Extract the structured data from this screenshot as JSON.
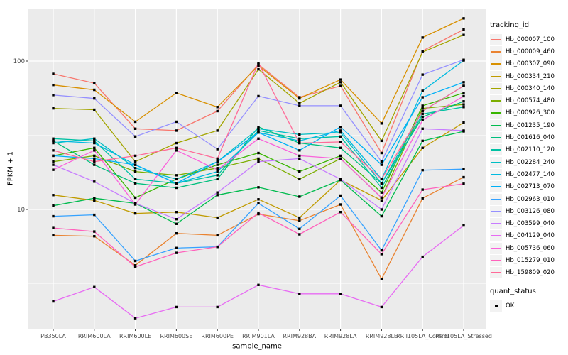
{
  "figure": {
    "colors": {
      "panel_bg": "#EBEBEB",
      "grid_major": "#FFFFFF",
      "grid_minor": "#FFFFFF",
      "tick_mark": "#333333",
      "tick_label": "#4D4D4D",
      "axis_title": "#000000",
      "point": "#000000",
      "legend_key_bg": "#F2F2F2"
    }
  },
  "chart_data": {
    "type": "line",
    "title": "",
    "xlabel": "sample_name",
    "ylabel": "FPKM + 1",
    "yscale": "log10",
    "ylim": [
      1.57,
      226
    ],
    "yticks": [
      10,
      100
    ],
    "minor_yticks": [
      3.162,
      31.62
    ],
    "grid": true,
    "legend_position": "right",
    "legend_titles": {
      "color": "tracking_id",
      "shape": "quant_status"
    },
    "quant_status": {
      "label": "OK",
      "marker": "black-square"
    },
    "marker": "black-square",
    "categories": [
      "PB350LA",
      "RRIM600LA",
      "RRIM600LE",
      "RRIM600SE",
      "RRIM600PE",
      "RRIM901LA",
      "RRIM928BA",
      "RRIM928LA",
      "RRIM928LE",
      "RRII105LA_Control",
      "RRII105LA_Stressed"
    ],
    "series": [
      {
        "name": "Hb_000007_100",
        "color": "#F8766D",
        "values": [
          82,
          71,
          35,
          34,
          46,
          95,
          57,
          68,
          24,
          117,
          163
        ]
      },
      {
        "name": "Hb_000009_460",
        "color": "#EA8331",
        "values": [
          6.7,
          6.6,
          4.2,
          6.9,
          6.7,
          9.3,
          8.4,
          10.8,
          3.4,
          11.9,
          16.5
        ]
      },
      {
        "name": "Hb_000307_090",
        "color": "#D89000",
        "values": [
          69,
          64,
          39,
          61,
          49,
          93,
          56,
          75,
          38,
          144,
          194
        ]
      },
      {
        "name": "Hb_000334_210",
        "color": "#C09B00",
        "values": [
          12.5,
          11.5,
          9.4,
          9.6,
          8.8,
          11.7,
          8.8,
          15.8,
          11.5,
          26,
          38.5
        ]
      },
      {
        "name": "Hb_000340_140",
        "color": "#A3A500",
        "values": [
          48,
          47,
          21,
          28,
          34,
          88,
          52,
          72,
          29,
          115,
          150
        ]
      },
      {
        "name": "Hb_000574_480",
        "color": "#7CAE00",
        "values": [
          21,
          23,
          18,
          17,
          19,
          22,
          16,
          22,
          12,
          48,
          51
        ]
      },
      {
        "name": "Hb_000926_300",
        "color": "#39B600",
        "values": [
          23,
          26,
          12,
          16,
          20,
          24,
          18,
          23,
          13,
          50,
          61
        ]
      },
      {
        "name": "Hb_001235_190",
        "color": "#00BB4E",
        "values": [
          10.6,
          11.9,
          11,
          8,
          12.5,
          14.1,
          12.2,
          15.8,
          9,
          29,
          33.6
        ]
      },
      {
        "name": "Hb_001616_040",
        "color": "#00BF7D",
        "values": [
          29,
          20,
          15,
          14,
          16,
          36,
          28,
          26,
          15,
          42,
          53.5
        ]
      },
      {
        "name": "Hb_002110_120",
        "color": "#00C1A3",
        "values": [
          30,
          29,
          16,
          15,
          17,
          34,
          30,
          31,
          14,
          44,
          49
        ]
      },
      {
        "name": "Hb_002284_240",
        "color": "#00BFC4",
        "values": [
          28,
          30,
          19,
          16,
          21,
          35,
          32,
          33,
          15,
          46,
          68
        ]
      },
      {
        "name": "Hb_002477_140",
        "color": "#00BAE0",
        "values": [
          29,
          28,
          20,
          15,
          18,
          33,
          29,
          34,
          16,
          63,
          101
        ]
      },
      {
        "name": "Hb_002713_070",
        "color": "#00B0F6",
        "values": [
          23,
          22,
          20,
          15,
          21,
          33,
          25,
          36,
          20,
          57,
          72
        ]
      },
      {
        "name": "Hb_002963_010",
        "color": "#35A2FF",
        "values": [
          9,
          9.2,
          4.5,
          5.5,
          5.6,
          11,
          7.4,
          12.4,
          5.3,
          18.4,
          18.7
        ]
      },
      {
        "name": "Hb_003126_080",
        "color": "#9590FF",
        "values": [
          59,
          56,
          31,
          39,
          25.5,
          58,
          50,
          50,
          21,
          81,
          102
        ]
      },
      {
        "name": "Hb_003599_040",
        "color": "#C77CFF",
        "values": [
          20,
          15.4,
          11,
          8.6,
          13,
          21,
          22,
          16,
          10,
          35,
          34
        ]
      },
      {
        "name": "Hb_004129_040",
        "color": "#E76BF3",
        "values": [
          2.4,
          3,
          1.85,
          2.2,
          2.2,
          3.1,
          2.7,
          2.7,
          2.2,
          4.8,
          7.8
        ]
      },
      {
        "name": "Hb_005736_060",
        "color": "#FA62DB",
        "values": [
          18.5,
          25,
          10.8,
          25,
          18.5,
          30,
          23,
          22,
          12,
          40,
          58
        ]
      },
      {
        "name": "Hb_015279_010",
        "color": "#FF62BC",
        "values": [
          7.5,
          7.1,
          4.1,
          5.1,
          5.6,
          9.5,
          6.8,
          9.6,
          5,
          13.6,
          14.9
        ]
      },
      {
        "name": "Hb_159809_020",
        "color": "#FF6A98",
        "values": [
          25,
          21,
          23,
          26,
          22,
          97,
          28,
          28.5,
          16,
          46,
          68
        ]
      }
    ]
  }
}
